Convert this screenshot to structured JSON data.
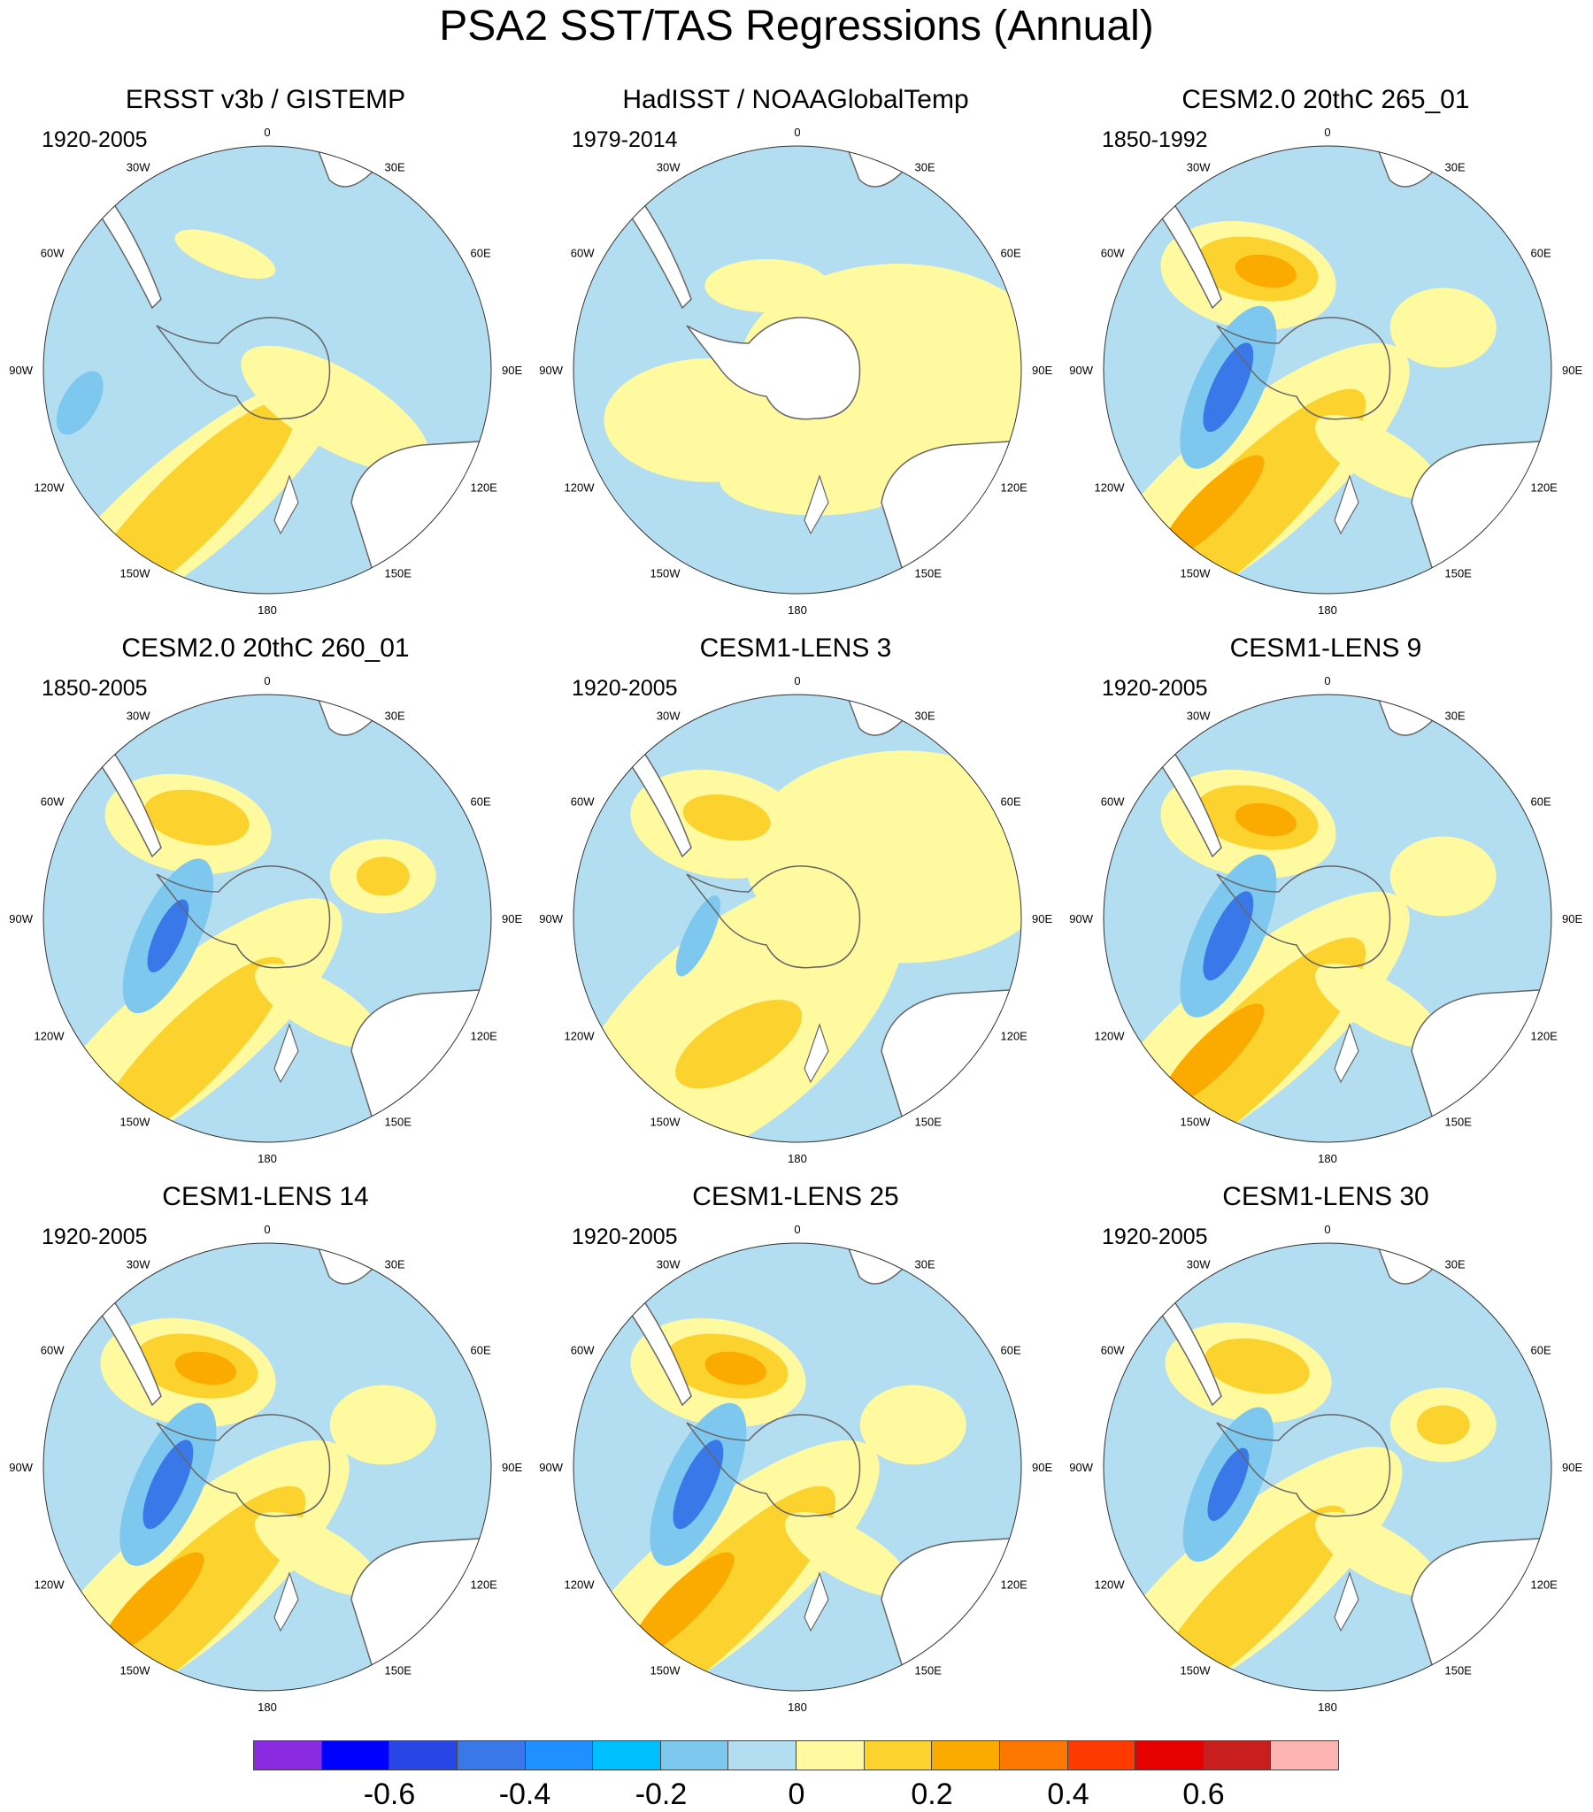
{
  "title": "PSA2 SST/TAS Regressions (Annual)",
  "lon_labels": [
    "0",
    "30E",
    "60E",
    "90E",
    "120E",
    "150E",
    "180",
    "150W",
    "120W",
    "90W",
    "60W",
    "30W"
  ],
  "panels": [
    {
      "title": "ERSST v3b / GISTEMP",
      "period": "1920-2005",
      "pattern": "obs1",
      "white_antarctica": false
    },
    {
      "title": "HadISST / NOAAGlobalTemp",
      "period": "1979-2014",
      "pattern": "obs2",
      "white_antarctica": true
    },
    {
      "title": "CESM2.0 20thC 265_01",
      "period": "1850-1992",
      "pattern": "strong",
      "white_antarctica": false
    },
    {
      "title": "CESM2.0 20thC 260_01",
      "period": "1850-2005",
      "pattern": "model",
      "white_antarctica": false
    },
    {
      "title": "CESM1-LENS 3",
      "period": "1920-2005",
      "pattern": "weak",
      "white_antarctica": false
    },
    {
      "title": "CESM1-LENS 9",
      "period": "1920-2005",
      "pattern": "strong",
      "white_antarctica": false
    },
    {
      "title": "CESM1-LENS 14",
      "period": "1920-2005",
      "pattern": "strong",
      "white_antarctica": false
    },
    {
      "title": "CESM1-LENS 25",
      "period": "1920-2005",
      "pattern": "strong",
      "white_antarctica": false
    },
    {
      "title": "CESM1-LENS 30",
      "period": "1920-2005",
      "pattern": "model",
      "white_antarctica": false
    }
  ],
  "colorbar": {
    "colors": [
      "#8a2be2",
      "#0000ff",
      "#2845e6",
      "#3a78ea",
      "#1e90ff",
      "#00bfff",
      "#7ec8f0",
      "#b3def2",
      "#fff9a0",
      "#fcd22e",
      "#fbab00",
      "#fc7800",
      "#ff3a00",
      "#e60000",
      "#c81e1e",
      "#ffb4b4"
    ],
    "tick_labels": [
      "-0.6",
      "-0.4",
      "-0.2",
      "0",
      "0.2",
      "0.4",
      "0.6"
    ]
  },
  "field_colors": {
    "neg2": "#3a78ea",
    "neg1": "#7ec8f0",
    "neg0": "#b3def2",
    "pos0": "#fff9a0",
    "pos1": "#fcd22e",
    "pos2": "#fbab00",
    "pos3": "#fc7800",
    "coast": "#666666",
    "land": "#ffffff"
  }
}
